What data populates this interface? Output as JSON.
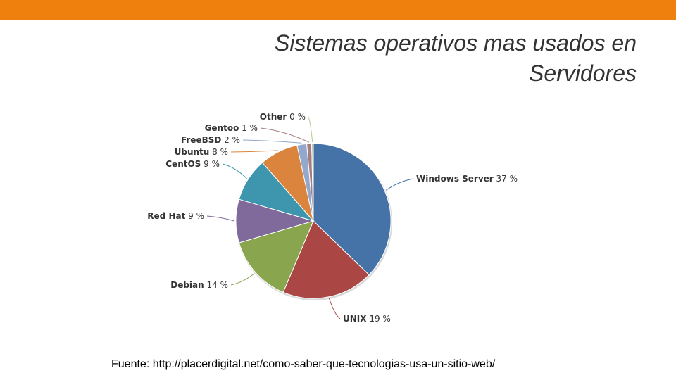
{
  "header": {
    "bar_color": "#f0800e"
  },
  "slide": {
    "title_line1": "Sistemas operativos mas usados en",
    "title_line2": "Servidores",
    "source": "Fuente: http://placerdigital.net/como-saber-que-tecnologias-usa-un-sitio-web/"
  },
  "chart_data": {
    "type": "pie",
    "title": "",
    "slices": [
      {
        "label": "Windows Server",
        "value": 37,
        "display": "37 %",
        "color": "#4572a7"
      },
      {
        "label": "UNIX",
        "value": 19,
        "display": "19 %",
        "color": "#aa4643"
      },
      {
        "label": "Debian",
        "value": 14,
        "display": "14 %",
        "color": "#89a54e"
      },
      {
        "label": "Red Hat",
        "value": 9,
        "display": "9 %",
        "color": "#80699b"
      },
      {
        "label": "CentOS",
        "value": 9,
        "display": "9 %",
        "color": "#3d96ae"
      },
      {
        "label": "Ubuntu",
        "value": 8,
        "display": "8 %",
        "color": "#db843d"
      },
      {
        "label": "FreeBSD",
        "value": 2,
        "display": "2 %",
        "color": "#92a8cd"
      },
      {
        "label": "Gentoo",
        "value": 1,
        "display": "1 %",
        "color": "#a47d7c"
      },
      {
        "label": "Other",
        "value": 0,
        "display": "0 %",
        "color": "#b5ca92"
      }
    ]
  }
}
